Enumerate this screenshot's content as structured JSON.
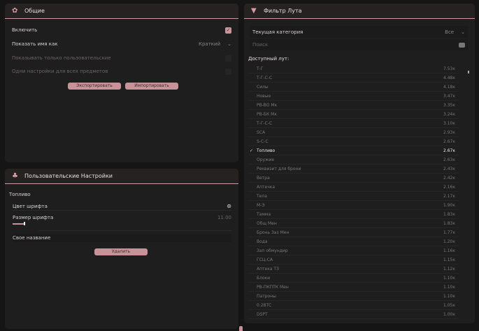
{
  "general": {
    "title": "Общие",
    "enable": "Включить",
    "enabled": true,
    "show_names": "Показать имя как",
    "show_names_value": "Краткий",
    "only_custom": "Показывать только пользовательские",
    "same_settings": "Одни настройки для всех предметов",
    "export": "Экспортировать",
    "import": "Импортировать"
  },
  "custom": {
    "title": "Пользовательские Настройки",
    "group": "Топливо",
    "font_color": "Цвет шрифта",
    "font_size": "Размер шрифта",
    "font_size_value": "11.00",
    "font_size_fraction": 0.1,
    "custom_name": "Свое название",
    "delete": "Удалить"
  },
  "filter": {
    "title": "Фильтр Лута",
    "category_label": "Текущая категория",
    "category_value": "Все",
    "search_placeholder": "Поиск",
    "available": "Доступный лут:",
    "items": [
      {
        "name": "Т-Г",
        "value": "7.53к"
      },
      {
        "name": "Т-Г-С-С",
        "value": "4.48к"
      },
      {
        "name": "Силы",
        "value": "4.18к"
      },
      {
        "name": "Новые",
        "value": "3.47к"
      },
      {
        "name": "PB-BO Мк",
        "value": "3.35к"
      },
      {
        "name": "PB-БК Мк",
        "value": "3.24к"
      },
      {
        "name": "Т-Г-С-С",
        "value": "3.10к"
      },
      {
        "name": "SCA",
        "value": "2.93к"
      },
      {
        "name": "S-C-C",
        "value": "2.67к"
      },
      {
        "name": "Топливо",
        "value": "2.67к",
        "checked": true
      },
      {
        "name": "Оружие",
        "value": "2.63к"
      },
      {
        "name": "Реквизит для брони",
        "value": "2.43к"
      },
      {
        "name": "Ветра",
        "value": "2.42к"
      },
      {
        "name": "Аптечка",
        "value": "2.16к"
      },
      {
        "name": "Тела",
        "value": "2.17к"
      },
      {
        "name": "М-Э",
        "value": "1.90к"
      },
      {
        "name": "Тамма",
        "value": "1.83к"
      },
      {
        "name": "Общ Мен",
        "value": "1.83к"
      },
      {
        "name": "Бронь Заз Мен",
        "value": "1.77к"
      },
      {
        "name": "Вода",
        "value": "1.20к"
      },
      {
        "name": "Зап обмундир",
        "value": "1.16к"
      },
      {
        "name": "ГСЦ-СА",
        "value": "1.15к"
      },
      {
        "name": "Аптека ТЗ",
        "value": "1.12к"
      },
      {
        "name": "Блоки",
        "value": "1.10к"
      },
      {
        "name": "PB-ПКПТК Мен",
        "value": "1.10к"
      },
      {
        "name": "Патроны",
        "value": "1.10к"
      },
      {
        "name": "0.2BTC",
        "value": "1.05к"
      },
      {
        "name": "DSPT",
        "value": "1.00к"
      }
    ]
  }
}
